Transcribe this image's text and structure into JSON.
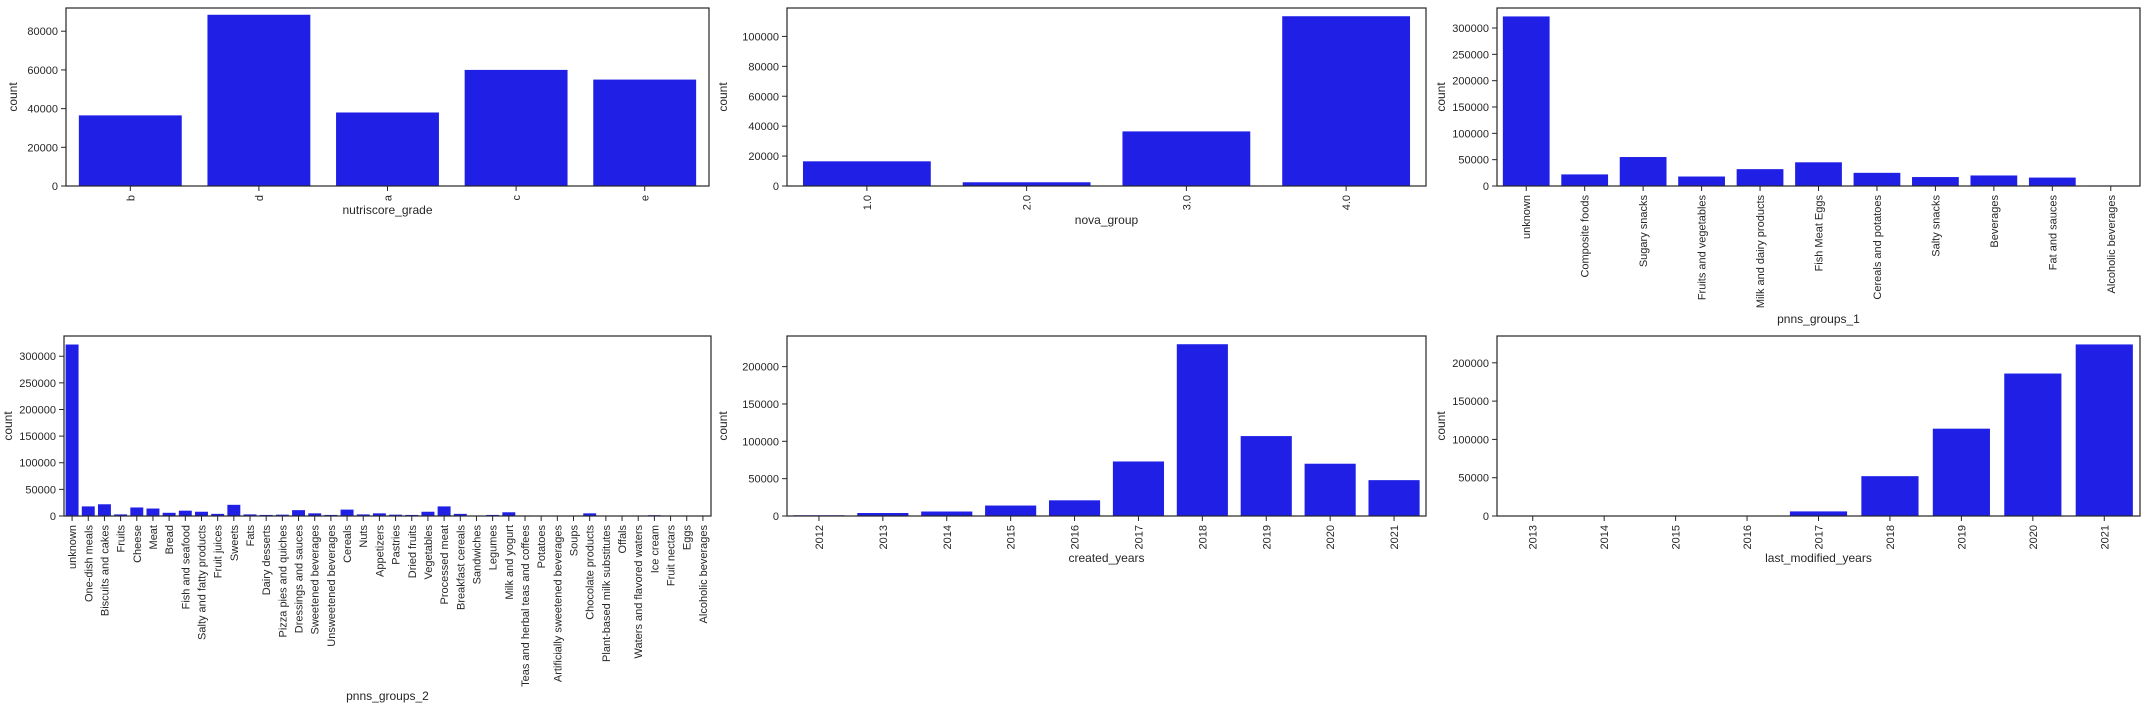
{
  "chart_data": [
    {
      "type": "bar",
      "categories": [
        "b",
        "d",
        "a",
        "c",
        "e"
      ],
      "values": [
        36500,
        88500,
        38000,
        60000,
        55000
      ],
      "xlabel": "nutriscore_grade",
      "ylabel": "count",
      "ylim": [
        0,
        92000
      ],
      "yticks": [
        0,
        20000,
        40000,
        60000,
        80000
      ],
      "rotate_xticks": true,
      "bar_color": "#1f1fe6"
    },
    {
      "type": "bar",
      "categories": [
        "1.0",
        "2.0",
        "3.0",
        "4.0"
      ],
      "values": [
        16500,
        2500,
        36500,
        113500
      ],
      "xlabel": "nova_group",
      "ylabel": "count",
      "ylim": [
        0,
        119000
      ],
      "yticks": [
        0,
        20000,
        40000,
        60000,
        80000,
        100000
      ],
      "rotate_xticks": true,
      "bar_color": "#1f1fe6"
    },
    {
      "type": "bar",
      "categories": [
        "unknown",
        "Composite foods",
        "Sugary snacks",
        "Fruits and vegetables",
        "Milk and dairy products",
        "Fish Meat Eggs",
        "Cereals and potatoes",
        "Salty snacks",
        "Beverages",
        "Fat and sauces",
        "Alcoholic beverages"
      ],
      "values": [
        322000,
        22000,
        55000,
        18000,
        32000,
        45000,
        25000,
        17000,
        20000,
        16000,
        1000
      ],
      "xlabel": "pnns_groups_1",
      "ylabel": "count",
      "ylim": [
        0,
        338000
      ],
      "yticks": [
        0,
        50000,
        100000,
        150000,
        200000,
        250000,
        300000
      ],
      "rotate_xticks": true,
      "bar_color": "#1f1fe6"
    },
    {
      "type": "bar",
      "categories": [
        "unknown",
        "One-dish meals",
        "Biscuits and cakes",
        "Fruits",
        "Cheese",
        "Meat",
        "Bread",
        "Fish and seafood",
        "Salty and fatty products",
        "Fruit juices",
        "Sweets",
        "Fats",
        "Dairy desserts",
        "Pizza pies and quiches",
        "Dressings and sauces",
        "Sweetened beverages",
        "Unsweetened beverages",
        "Cereals",
        "Nuts",
        "Appetizers",
        "Pastries",
        "Dried fruits",
        "Vegetables",
        "Processed meat",
        "Breakfast cereals",
        "Sandwiches",
        "Legumes",
        "Milk and yogurt",
        "Teas and herbal teas and coffees",
        "Potatoes",
        "Artificially sweetened beverages",
        "Soups",
        "Chocolate products",
        "Plant-based milk substitutes",
        "Offals",
        "Waters and flavored waters",
        "Ice cream",
        "Fruit nectars",
        "Eggs",
        "Alcoholic beverages"
      ],
      "values": [
        322000,
        18000,
        22000,
        3000,
        16000,
        14000,
        6000,
        10000,
        8000,
        4000,
        21000,
        3000,
        2000,
        2500,
        11000,
        5000,
        2000,
        12000,
        3000,
        5000,
        2500,
        2000,
        8000,
        18000,
        4000,
        1000,
        2000,
        7000,
        1000,
        500,
        500,
        500,
        5000,
        500,
        500,
        500,
        1500,
        500,
        500,
        500
      ],
      "xlabel": "pnns_groups_2",
      "ylabel": "count",
      "ylim": [
        0,
        338000
      ],
      "yticks": [
        0,
        50000,
        100000,
        150000,
        200000,
        250000,
        300000
      ],
      "rotate_xticks": true,
      "bar_color": "#1f1fe6"
    },
    {
      "type": "bar",
      "categories": [
        "2012",
        "2013",
        "2014",
        "2015",
        "2016",
        "2017",
        "2018",
        "2019",
        "2020",
        "2021"
      ],
      "values": [
        1000,
        4000,
        6000,
        14000,
        21000,
        73000,
        230000,
        107000,
        70000,
        48000
      ],
      "xlabel": "created_years",
      "ylabel": "count",
      "ylim": [
        0,
        241000
      ],
      "yticks": [
        0,
        50000,
        100000,
        150000,
        200000
      ],
      "rotate_xticks": true,
      "bar_color": "#1f1fe6"
    },
    {
      "type": "bar",
      "categories": [
        "2013",
        "2014",
        "2015",
        "2016",
        "2017",
        "2018",
        "2019",
        "2020",
        "2021"
      ],
      "values": [
        300,
        300,
        300,
        500,
        6000,
        52000,
        114000,
        186000,
        224000
      ],
      "xlabel": "last_modified_years",
      "ylabel": "count",
      "ylim": [
        0,
        235000
      ],
      "yticks": [
        0,
        50000,
        100000,
        150000,
        200000
      ],
      "rotate_xticks": true,
      "bar_color": "#1f1fe6"
    }
  ]
}
